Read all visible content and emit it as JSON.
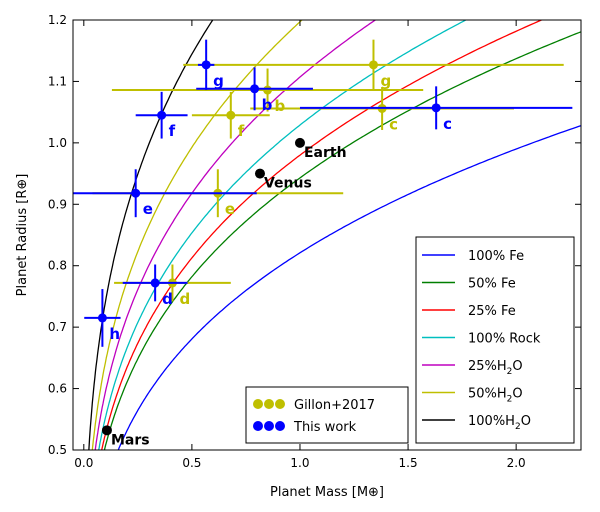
{
  "colors": {
    "this_work": "#0000ff",
    "gillon": "#bfbf00",
    "reference": "#000000",
    "fe100": "#0000ff",
    "fe50": "#007f00",
    "fe25": "#ff0000",
    "rock100": "#00bfbf",
    "h2o25": "#bf00bf",
    "h2o50": "#bfbf00",
    "h2o100": "#000000"
  },
  "chart_data": {
    "type": "scatter",
    "xlabel": "Planet Mass [M⊕]",
    "ylabel": "Planet Radius [R⊕]",
    "xlim": [
      -0.05,
      2.3
    ],
    "ylim": [
      0.5,
      1.2
    ],
    "xticks": [
      0.0,
      0.5,
      1.0,
      1.5,
      2.0
    ],
    "xtick_labels": [
      "0.0",
      "0.5",
      "1.0",
      "1.5",
      "2.0"
    ],
    "yticks": [
      0.5,
      0.6,
      0.7,
      0.8,
      0.9,
      1.0,
      1.1,
      1.2
    ],
    "ytick_labels": [
      "0.5",
      "0.6",
      "0.7",
      "0.8",
      "0.9",
      "1.0",
      "1.1",
      "1.2"
    ],
    "grid": false,
    "composition_curves": [
      {
        "name": "100% Fe",
        "color_key": "fe100",
        "k": 0.821,
        "label": "100% Fe"
      },
      {
        "name": "50% Fe",
        "color_key": "fe50",
        "k": 0.943,
        "label": "50% Fe"
      },
      {
        "name": "25% Fe",
        "color_key": "fe25",
        "k": 0.98,
        "label": "25% Fe"
      },
      {
        "name": "100% Rock",
        "color_key": "rock100",
        "k": 1.029,
        "label": "100% Rock"
      },
      {
        "name": "25%H2O",
        "color_key": "h2o25",
        "k": 1.107,
        "label_main": "25%H",
        "label_sub": "2",
        "label_tail": "O"
      },
      {
        "name": "50%H2O",
        "color_key": "h2o50",
        "k": 1.197,
        "label_main": "50%H",
        "label_sub": "2",
        "label_tail": "O"
      },
      {
        "name": "100%H2O",
        "color_key": "h2o100",
        "k": 1.38,
        "label_main": "100%H",
        "label_sub": "2",
        "label_tail": "O"
      }
    ],
    "series": [
      {
        "name": "Gillon+2017",
        "color_key": "gillon",
        "points": [
          {
            "label": "b",
            "x": 0.85,
            "y": 1.086,
            "xerr": 0.72,
            "yerr": 0.035
          },
          {
            "label": "c",
            "x": 1.38,
            "y": 1.056,
            "xerr": 0.61,
            "yerr": 0.035
          },
          {
            "label": "d",
            "x": 0.41,
            "y": 0.772,
            "xerr": 0.27,
            "yerr": 0.03
          },
          {
            "label": "e",
            "x": 0.62,
            "y": 0.918,
            "xerr": 0.58,
            "yerr": 0.039
          },
          {
            "label": "f",
            "x": 0.68,
            "y": 1.045,
            "xerr": 0.18,
            "yerr": 0.038
          },
          {
            "label": "g",
            "x": 1.34,
            "y": 1.127,
            "xerr": 0.88,
            "yerr": 0.041
          }
        ]
      },
      {
        "name": "This work",
        "color_key": "this_work",
        "points": [
          {
            "label": "b",
            "x": 0.79,
            "y": 1.088,
            "xerr": 0.27,
            "yerr": 0.035
          },
          {
            "label": "c",
            "x": 1.63,
            "y": 1.057,
            "xerr": 0.63,
            "yerr": 0.035
          },
          {
            "label": "d",
            "x": 0.33,
            "y": 0.772,
            "xerr": 0.15,
            "yerr": 0.03
          },
          {
            "label": "e",
            "x": 0.24,
            "y": 0.918,
            "xerr": 0.56,
            "yerr": 0.039
          },
          {
            "label": "f",
            "x": 0.36,
            "y": 1.045,
            "xerr": 0.12,
            "yerr": 0.038
          },
          {
            "label": "g",
            "x": 0.566,
            "y": 1.127,
            "xerr": 0.038,
            "yerr": 0.041
          },
          {
            "label": "h",
            "x": 0.086,
            "y": 0.715,
            "xerr": 0.084,
            "yerr": 0.047
          }
        ]
      }
    ],
    "reference_planets": [
      {
        "label": "Earth",
        "x": 1.0,
        "y": 1.0
      },
      {
        "label": "Venus",
        "x": 0.815,
        "y": 0.95
      },
      {
        "label": "Mars",
        "x": 0.107,
        "y": 0.532
      }
    ],
    "legends": [
      {
        "placement": "lower-center",
        "entries": [
          "Gillon+2017",
          "This work"
        ]
      },
      {
        "placement": "lower-right",
        "entries": [
          "100% Fe",
          "50% Fe",
          "25% Fe",
          "100% Rock",
          "25%H2O",
          "50%H2O",
          "100%H2O"
        ]
      }
    ]
  }
}
